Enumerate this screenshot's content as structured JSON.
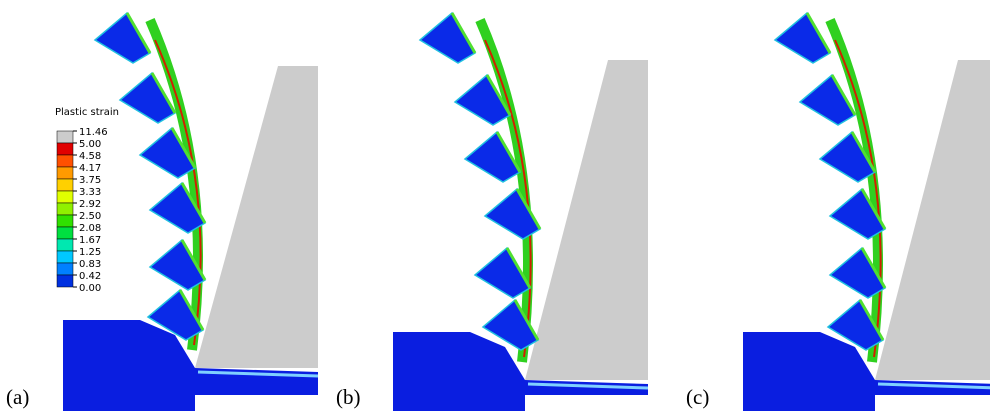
{
  "legend": {
    "title": "Plastic strain",
    "labels": [
      "11.46",
      "5.00",
      "4.58",
      "4.17",
      "3.75",
      "3.33",
      "2.92",
      "2.50",
      "2.08",
      "1.67",
      "1.25",
      "0.83",
      "0.42",
      "0.00"
    ],
    "colors": [
      "#cccccc",
      "#e00000",
      "#ff5000",
      "#ff9a00",
      "#ffd000",
      "#e0ff00",
      "#90f000",
      "#30e000",
      "#00e040",
      "#00e8b0",
      "#00c8ff",
      "#0080ff",
      "#0030e0"
    ]
  },
  "panels": [
    {
      "label": "(a)"
    },
    {
      "label": "(b)"
    },
    {
      "label": "(c)"
    }
  ]
}
